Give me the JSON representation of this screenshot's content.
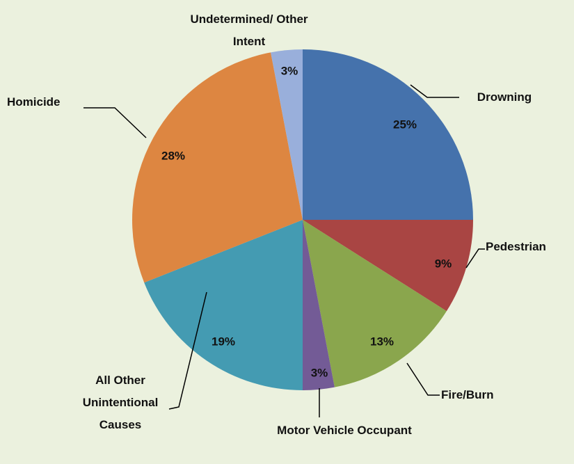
{
  "chart_data": {
    "type": "pie",
    "categories": [
      "Drowning",
      "Pedestrian",
      "Fire/Burn",
      "Motor Vehicle Occupant",
      "All Other Unintentional Causes",
      "Homicide",
      "Undetermined/ Other Intent"
    ],
    "values": [
      25,
      9,
      13,
      3,
      19,
      28,
      3
    ],
    "value_labels": [
      "25%",
      "9%",
      "13%",
      "3%",
      "19%",
      "28%",
      "3%"
    ],
    "colors": [
      "#4572ac",
      "#a94543",
      "#8aa64d",
      "#735b96",
      "#449bb2",
      "#dd8641",
      "#99afdb"
    ]
  }
}
